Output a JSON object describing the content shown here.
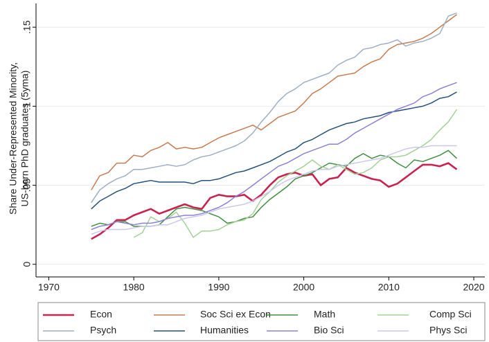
{
  "chart_data": {
    "type": "line",
    "y_label": [
      "Share Under-Represented Minority,",
      "US-born PhD graduates (5yma)"
    ],
    "x": [
      1975,
      1976,
      1977,
      1978,
      1979,
      1980,
      1981,
      1982,
      1983,
      1984,
      1985,
      1986,
      1987,
      1988,
      1989,
      1990,
      1991,
      1992,
      1993,
      1994,
      1995,
      1996,
      1997,
      1998,
      1999,
      2000,
      2001,
      2002,
      2003,
      2004,
      2005,
      2006,
      2007,
      2008,
      2009,
      2010,
      2011,
      2012,
      2013,
      2014,
      2015,
      2016,
      2017,
      2018
    ],
    "xlim": [
      1968.5,
      2021.3
    ],
    "xticks": [
      1970,
      1980,
      1990,
      2000,
      2010,
      2020
    ],
    "ylim": [
      -0.008,
      0.165
    ],
    "yticks": [
      0,
      {
        "value": 0.05,
        "label": ".05"
      },
      {
        "value": 0.1,
        "label": ".1"
      },
      {
        "value": 0.15,
        "label": ".15"
      }
    ],
    "grid": true,
    "legend": "bottom",
    "series": [
      {
        "name": "Econ",
        "color": "#c8234f",
        "width": 2.6,
        "values": [
          0.016,
          0.019,
          0.023,
          0.028,
          0.028,
          0.031,
          0.033,
          0.035,
          0.032,
          0.034,
          0.036,
          0.038,
          0.036,
          0.035,
          0.042,
          0.044,
          0.043,
          0.043,
          0.044,
          0.04,
          0.044,
          0.05,
          0.055,
          0.057,
          0.058,
          0.056,
          0.057,
          0.05,
          0.054,
          0.055,
          0.061,
          0.058,
          0.056,
          0.054,
          0.053,
          0.049,
          0.051,
          0.055,
          0.059,
          0.063,
          0.063,
          0.062,
          0.064,
          0.06
        ]
      },
      {
        "name": "Soc Sci ex Econ",
        "color": "#c77a4e",
        "width": 1.5,
        "values": [
          0.047,
          0.056,
          0.058,
          0.064,
          0.064,
          0.069,
          0.068,
          0.072,
          0.074,
          0.077,
          0.073,
          0.074,
          0.073,
          0.074,
          0.077,
          0.08,
          0.082,
          0.084,
          0.086,
          0.088,
          0.085,
          0.089,
          0.093,
          0.095,
          0.097,
          0.102,
          0.108,
          0.111,
          0.115,
          0.119,
          0.12,
          0.121,
          0.125,
          0.128,
          0.13,
          0.136,
          0.139,
          0.14,
          0.141,
          0.143,
          0.146,
          0.15,
          0.154,
          0.158
        ]
      },
      {
        "name": "Math",
        "color": "#3f8f3f",
        "width": 1.5,
        "values": [
          0.024,
          0.026,
          0.025,
          0.027,
          0.027,
          0.024,
          0.024,
          0.024,
          0.025,
          0.03,
          0.035,
          0.036,
          0.035,
          0.034,
          0.032,
          0.03,
          0.026,
          0.027,
          0.029,
          0.03,
          0.036,
          0.041,
          0.045,
          0.049,
          0.054,
          0.056,
          0.058,
          0.061,
          0.064,
          0.063,
          0.062,
          0.067,
          0.07,
          0.067,
          0.069,
          0.068,
          0.064,
          0.061,
          0.066,
          0.065,
          0.067,
          0.069,
          0.072,
          0.067
        ]
      },
      {
        "name": "Comp Sci",
        "color": "#a3d095",
        "width": 1.5,
        "values": [
          null,
          null,
          null,
          null,
          null,
          0.017,
          0.02,
          0.03,
          0.027,
          0.029,
          0.033,
          0.026,
          0.017,
          0.021,
          0.021,
          0.022,
          0.025,
          0.027,
          0.028,
          0.032,
          0.041,
          0.046,
          0.052,
          0.056,
          0.059,
          0.062,
          0.066,
          0.062,
          0.06,
          0.063,
          0.06,
          0.057,
          0.058,
          0.061,
          0.066,
          0.068,
          0.068,
          0.069,
          0.072,
          0.075,
          0.079,
          0.085,
          0.09,
          0.098
        ]
      },
      {
        "name": "Psych",
        "color": "#9eaec4",
        "width": 1.5,
        "values": [
          0.039,
          0.047,
          0.051,
          0.054,
          0.056,
          0.06,
          0.06,
          0.061,
          0.062,
          0.063,
          0.062,
          0.063,
          0.066,
          0.068,
          0.069,
          0.071,
          0.073,
          0.075,
          0.078,
          0.083,
          0.09,
          0.096,
          0.103,
          0.108,
          0.111,
          0.115,
          0.117,
          0.119,
          0.121,
          0.126,
          0.129,
          0.131,
          0.136,
          0.137,
          0.139,
          0.14,
          0.142,
          0.138,
          0.14,
          0.141,
          0.143,
          0.146,
          0.157,
          0.159
        ]
      },
      {
        "name": "Humanities",
        "color": "#24507a",
        "width": 1.5,
        "values": [
          0.035,
          0.04,
          0.043,
          0.046,
          0.048,
          0.051,
          0.052,
          0.053,
          0.052,
          0.052,
          0.052,
          0.052,
          0.051,
          0.053,
          0.053,
          0.054,
          0.056,
          0.058,
          0.059,
          0.061,
          0.063,
          0.065,
          0.068,
          0.071,
          0.073,
          0.077,
          0.079,
          0.082,
          0.085,
          0.087,
          0.089,
          0.09,
          0.092,
          0.093,
          0.094,
          0.096,
          0.097,
          0.098,
          0.099,
          0.1,
          0.102,
          0.105,
          0.106,
          0.109
        ]
      },
      {
        "name": "Bio Sci",
        "color": "#8c80d6",
        "width": 1.5,
        "values": [
          0.022,
          0.024,
          0.025,
          0.027,
          0.026,
          0.025,
          0.026,
          0.026,
          0.027,
          0.029,
          0.03,
          0.031,
          0.031,
          0.032,
          0.034,
          0.036,
          0.039,
          0.043,
          0.046,
          0.05,
          0.054,
          0.058,
          0.062,
          0.064,
          0.067,
          0.07,
          0.072,
          0.074,
          0.076,
          0.076,
          0.079,
          0.083,
          0.086,
          0.089,
          0.092,
          0.095,
          0.098,
          0.1,
          0.102,
          0.106,
          0.108,
          0.111,
          0.113,
          0.115
        ]
      },
      {
        "name": "Phys Sci",
        "color": "#cbc7ee",
        "width": 1.5,
        "values": [
          0.019,
          0.021,
          0.022,
          0.022,
          0.022,
          0.023,
          0.024,
          0.024,
          0.025,
          0.025,
          0.027,
          0.029,
          0.03,
          0.031,
          0.033,
          0.035,
          0.036,
          0.037,
          0.038,
          0.04,
          0.043,
          0.046,
          0.05,
          0.053,
          0.055,
          0.057,
          0.059,
          0.06,
          0.06,
          0.062,
          0.063,
          0.064,
          0.065,
          0.066,
          0.067,
          0.069,
          0.071,
          0.073,
          0.074,
          0.074,
          0.075,
          0.075,
          0.075,
          0.075
        ]
      }
    ]
  }
}
